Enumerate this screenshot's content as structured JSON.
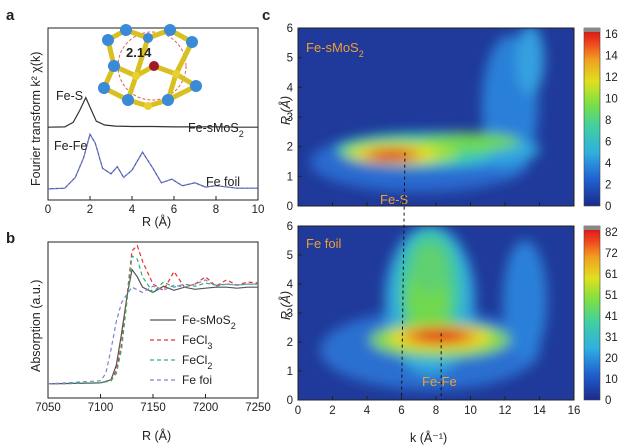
{
  "chart_data": [
    {
      "panel": "a",
      "type": "line",
      "xlabel": "R (Å)",
      "ylabel": "Fourier transform k² χ(k)",
      "xlim": [
        0,
        10
      ],
      "xticks": [
        "0",
        "2",
        "4",
        "6",
        "8",
        "10"
      ],
      "annotations": [
        "Fe-S",
        "Fe-Fe",
        "2.14"
      ],
      "series": [
        {
          "name": "Fe-sMoS2",
          "label_parts": [
            "Fe-sMoS",
            "2"
          ],
          "color": "#333333",
          "x": [
            0,
            0.8,
            1.2,
            1.5,
            1.8,
            2.0,
            2.3,
            2.7,
            3.2,
            4,
            5,
            6,
            7,
            8,
            9,
            10
          ],
          "y": [
            0.02,
            0.03,
            0.15,
            0.45,
            0.8,
            0.55,
            0.18,
            0.08,
            0.05,
            0.04,
            0.04,
            0.03,
            0.03,
            0.03,
            0.02,
            0.02
          ]
        },
        {
          "name": "Fe foil",
          "color": "#3a50c0",
          "x": [
            0,
            0.8,
            1.3,
            1.7,
            2.0,
            2.25,
            2.6,
            3.0,
            3.3,
            3.6,
            4.0,
            4.5,
            5.0,
            5.4,
            5.9,
            6.4,
            7,
            7.5,
            8,
            9,
            10
          ],
          "y": [
            0.03,
            0.05,
            0.35,
            0.9,
            1.55,
            1.3,
            0.6,
            0.45,
            0.65,
            0.35,
            0.55,
            1.05,
            0.6,
            0.2,
            0.3,
            0.12,
            0.2,
            0.08,
            0.12,
            0.05,
            0.05
          ]
        }
      ]
    },
    {
      "panel": "b",
      "type": "line",
      "xlabel": "R (Å)",
      "ylabel": "Absorption (a.u.)",
      "xlim": [
        7050,
        7250
      ],
      "xticks": [
        "7050",
        "7100",
        "7150",
        "7200",
        "7250"
      ],
      "series": [
        {
          "name": "Fe-sMoS2",
          "label_parts": [
            "Fe-sMoS",
            "2"
          ],
          "color": "#555555",
          "dash": "",
          "x": [
            7050,
            7100,
            7110,
            7115,
            7120,
            7125,
            7130,
            7135,
            7140,
            7150,
            7160,
            7170,
            7180,
            7190,
            7200,
            7210,
            7220,
            7230,
            7240,
            7250
          ],
          "y": [
            0.02,
            0.03,
            0.06,
            0.2,
            0.5,
            0.85,
            1.12,
            1.05,
            0.95,
            0.9,
            0.96,
            0.92,
            0.95,
            0.93,
            0.94,
            0.95,
            0.95,
            0.94,
            0.95,
            0.95
          ]
        },
        {
          "name": "FeCl3",
          "label_parts": [
            "FeCl",
            "3"
          ],
          "color": "#e83030",
          "dash": "4,3",
          "x": [
            7050,
            7100,
            7110,
            7115,
            7120,
            7125,
            7130,
            7135,
            7140,
            7150,
            7160,
            7170,
            7180,
            7190,
            7200,
            7210,
            7220,
            7230,
            7240,
            7250
          ],
          "y": [
            0.02,
            0.03,
            0.05,
            0.15,
            0.4,
            0.85,
            1.3,
            1.35,
            1.2,
            0.98,
            0.92,
            1.1,
            0.95,
            0.98,
            1.05,
            0.96,
            1.02,
            0.97,
            1.0,
            0.99
          ]
        },
        {
          "name": "FeCl2",
          "label_parts": [
            "FeCl",
            "2"
          ],
          "color": "#30b070",
          "dash": "4,3",
          "x": [
            7050,
            7100,
            7110,
            7115,
            7120,
            7125,
            7130,
            7135,
            7140,
            7150,
            7160,
            7170,
            7180,
            7190,
            7200,
            7210,
            7220,
            7230,
            7240,
            7250
          ],
          "y": [
            0.02,
            0.03,
            0.05,
            0.12,
            0.35,
            0.8,
            1.25,
            1.22,
            1.05,
            0.9,
            1.0,
            0.95,
            0.98,
            0.96,
            0.99,
            0.97,
            0.98,
            0.97,
            0.98,
            0.98
          ]
        },
        {
          "name": "Fe foi",
          "label_parts": [
            "Fe foi",
            ""
          ],
          "color": "#8080d0",
          "dash": "4,3",
          "x": [
            7050,
            7100,
            7105,
            7110,
            7115,
            7120,
            7125,
            7130,
            7140,
            7150,
            7160,
            7170,
            7180,
            7190,
            7200,
            7210,
            7220,
            7230,
            7240,
            7250
          ],
          "y": [
            0.02,
            0.05,
            0.12,
            0.35,
            0.62,
            0.8,
            0.88,
            0.95,
            0.9,
            0.96,
            0.92,
            0.97,
            0.95,
            0.98,
            1.02,
            0.96,
            0.98,
            0.97,
            0.98,
            0.98
          ]
        }
      ]
    },
    {
      "panel": "c",
      "type": "heatmap",
      "plots": [
        {
          "label": "Fe-sMoS",
          "label_sub": "2",
          "annotation": "Fe-S",
          "ylim": [
            0,
            6
          ],
          "xlim": [
            0,
            16
          ],
          "colorbar": {
            "min": 0,
            "max": 16,
            "ticks": [
              "16",
              "14",
              "12",
              "10",
              "8",
              "6",
              "4",
              "2",
              "0"
            ]
          },
          "peaks": [
            {
              "k": 6.2,
              "R": 1.8
            }
          ]
        },
        {
          "label": "Fe foil",
          "annotation": "Fe-Fe",
          "ylim": [
            0,
            6
          ],
          "xlim": [
            0,
            16
          ],
          "colorbar": {
            "min": 0,
            "max": 82,
            "ticks": [
              "82",
              "72",
              "61",
              "51",
              "41",
              "31",
              "20",
              "10",
              "0"
            ]
          },
          "peaks": [
            {
              "k": 8.3,
              "R": 2.3
            }
          ]
        }
      ],
      "xticks": [
        "0",
        "2",
        "4",
        "6",
        "8",
        "10",
        "12",
        "14",
        "16"
      ],
      "yticks": [
        "0",
        "1",
        "2",
        "3",
        "4",
        "5",
        "6"
      ],
      "xlabel": "k (Å⁻¹)",
      "ylabel": "R (Å)"
    }
  ],
  "panel_labels": [
    "a",
    "b",
    "c"
  ]
}
